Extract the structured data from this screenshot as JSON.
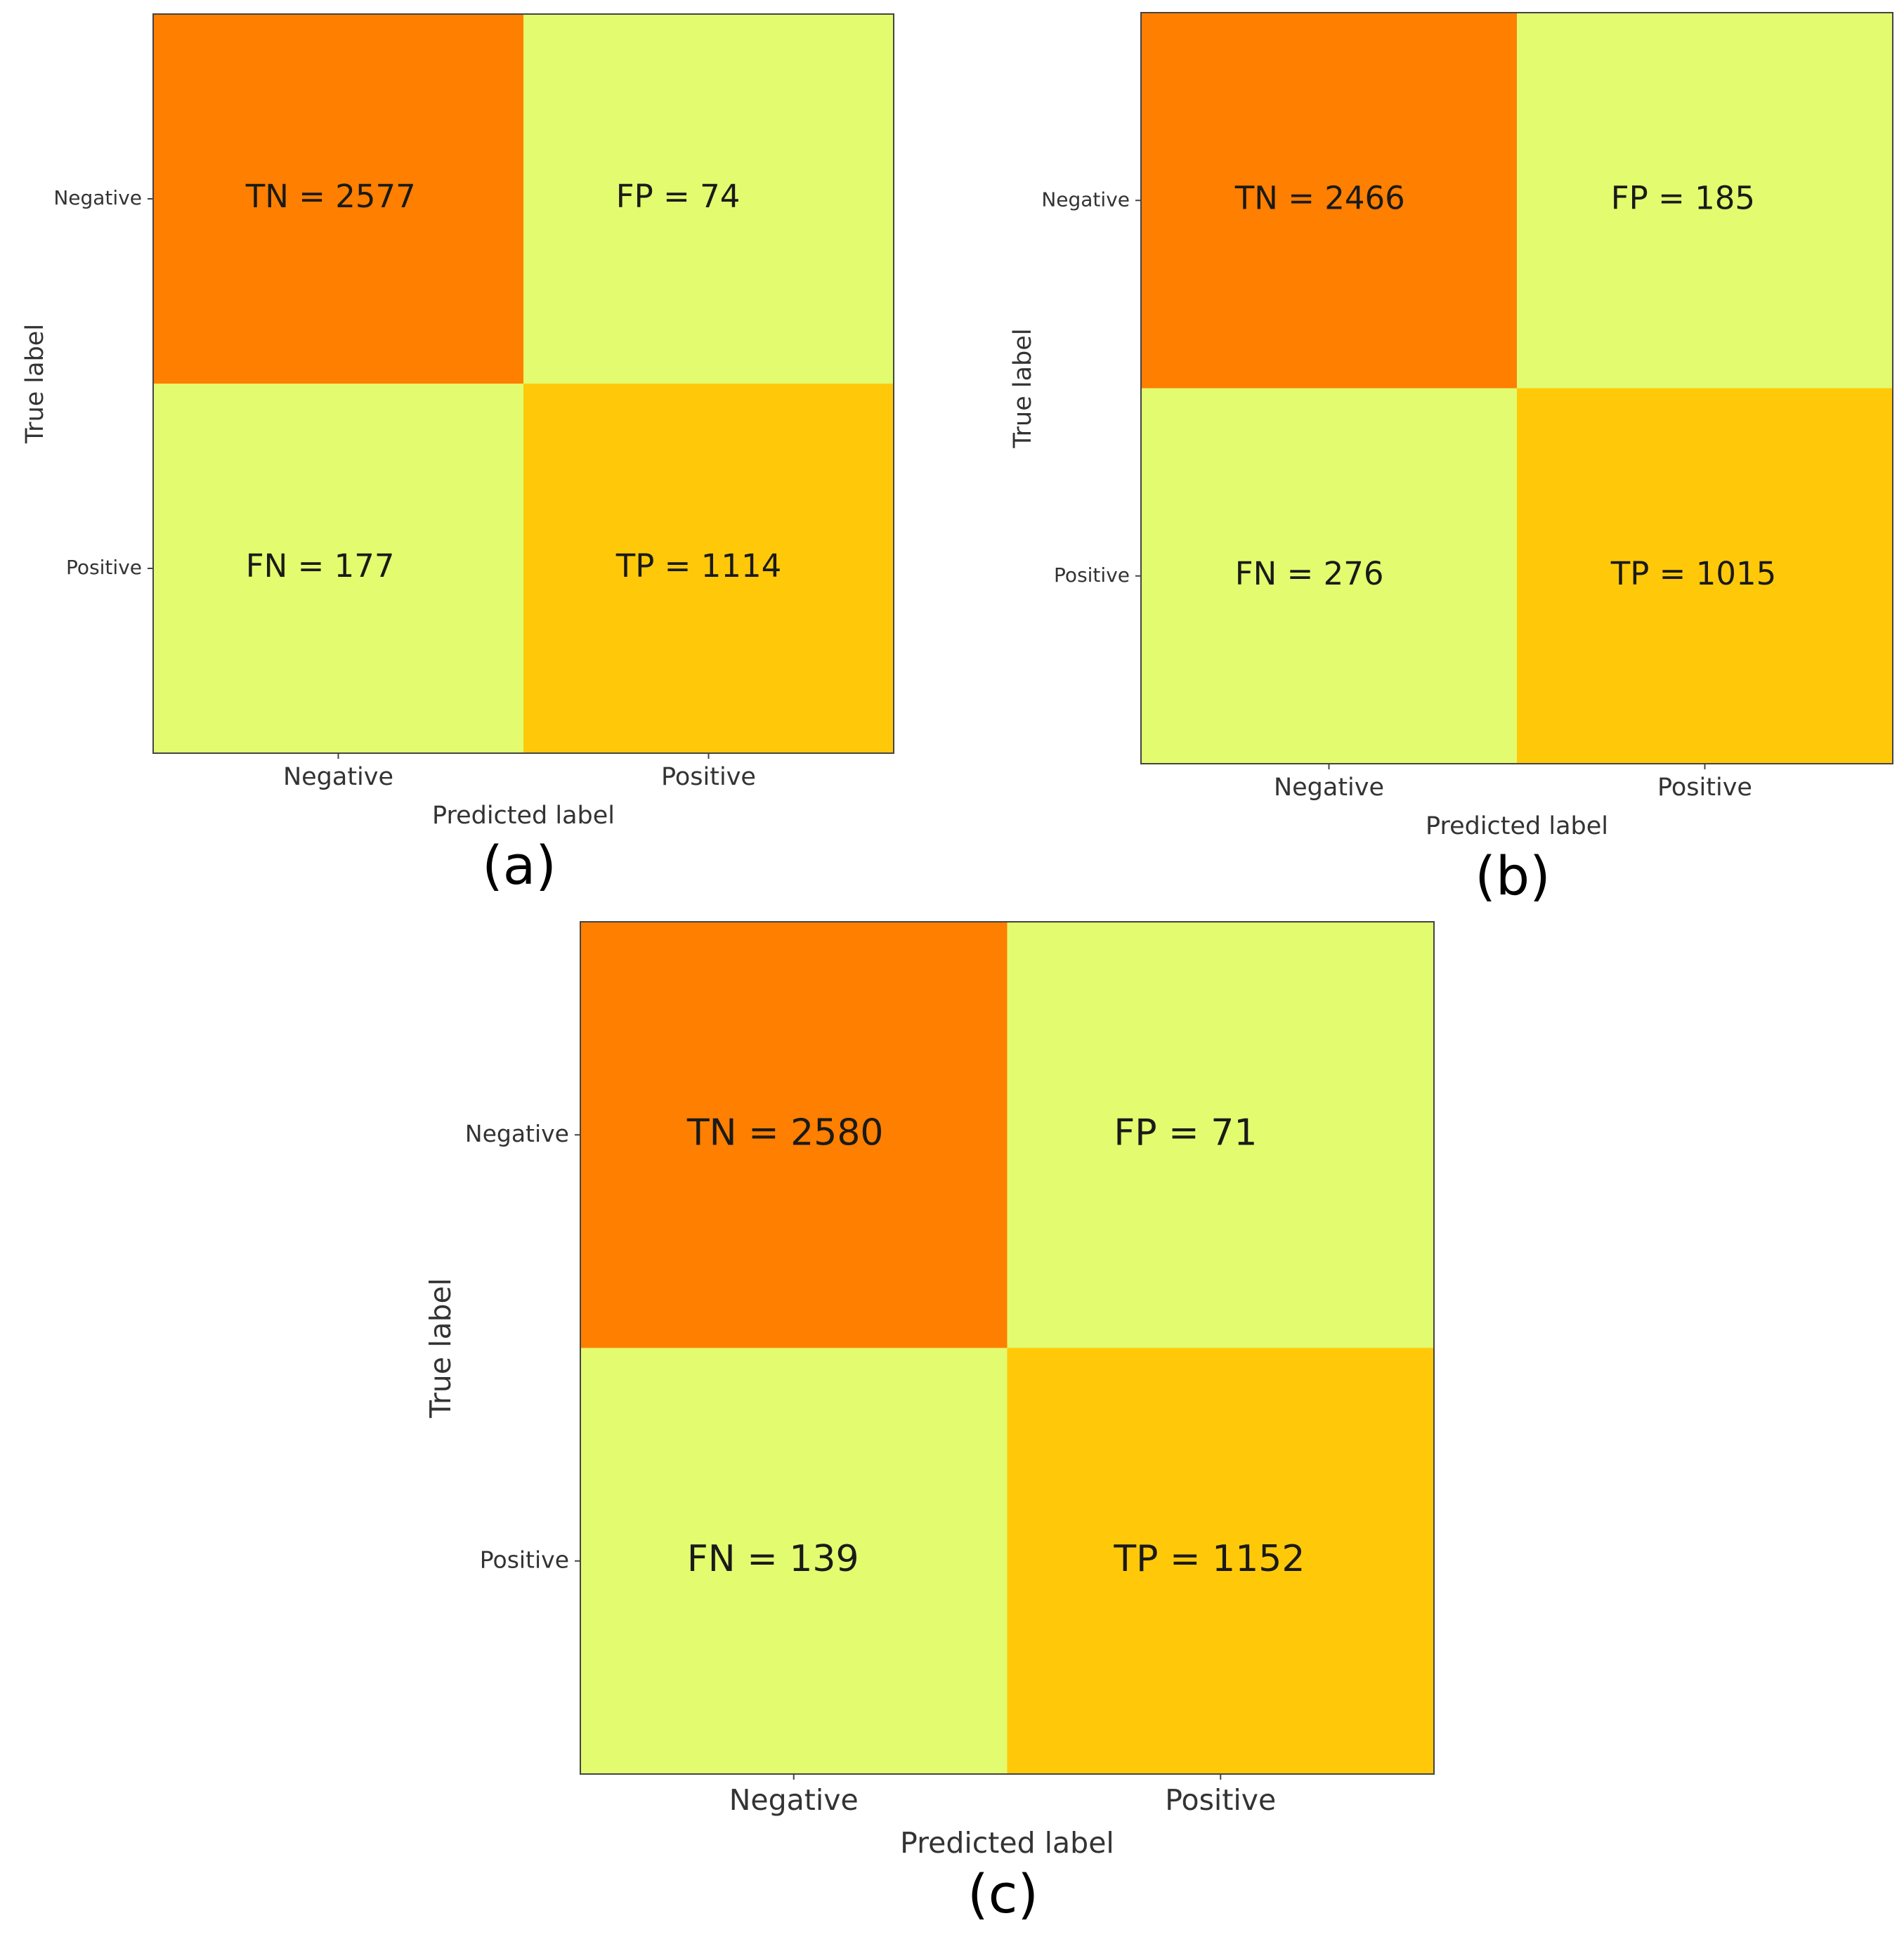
{
  "colors": {
    "high": "#ff7f00",
    "mid": "#ffc90a",
    "low": "#e3fb6e",
    "frame": "#444444"
  },
  "chart_data": [
    {
      "type": "heatmap",
      "caption": "(a)",
      "xlabel": "Predicted label",
      "ylabel": "True label",
      "x_categories": [
        "Negative",
        "Positive"
      ],
      "y_categories": [
        "Negative",
        "Positive"
      ],
      "cells": [
        [
          {
            "label": "TN = 2577",
            "value": 2577
          },
          {
            "label": "FP = 74",
            "value": 74
          }
        ],
        [
          {
            "label": "FN = 177",
            "value": 177
          },
          {
            "label": "TP = 1114",
            "value": 1114
          }
        ]
      ]
    },
    {
      "type": "heatmap",
      "caption": "(b)",
      "xlabel": "Predicted label",
      "ylabel": "True label",
      "x_categories": [
        "Negative",
        "Positive"
      ],
      "y_categories": [
        "Negative",
        "Positive"
      ],
      "cells": [
        [
          {
            "label": "TN = 2466",
            "value": 2466
          },
          {
            "label": "FP = 185",
            "value": 185
          }
        ],
        [
          {
            "label": "FN = 276",
            "value": 276
          },
          {
            "label": "TP = 1015",
            "value": 1015
          }
        ]
      ]
    },
    {
      "type": "heatmap",
      "caption": "(c)",
      "xlabel": "Predicted label",
      "ylabel": "True label",
      "x_categories": [
        "Negative",
        "Positive"
      ],
      "y_categories": [
        "Negative",
        "Positive"
      ],
      "cells": [
        [
          {
            "label": "TN = 2580",
            "value": 2580
          },
          {
            "label": "FP = 71",
            "value": 71
          }
        ],
        [
          {
            "label": "FN = 139",
            "value": 139
          },
          {
            "label": "TP = 1152",
            "value": 1152
          }
        ]
      ]
    }
  ]
}
